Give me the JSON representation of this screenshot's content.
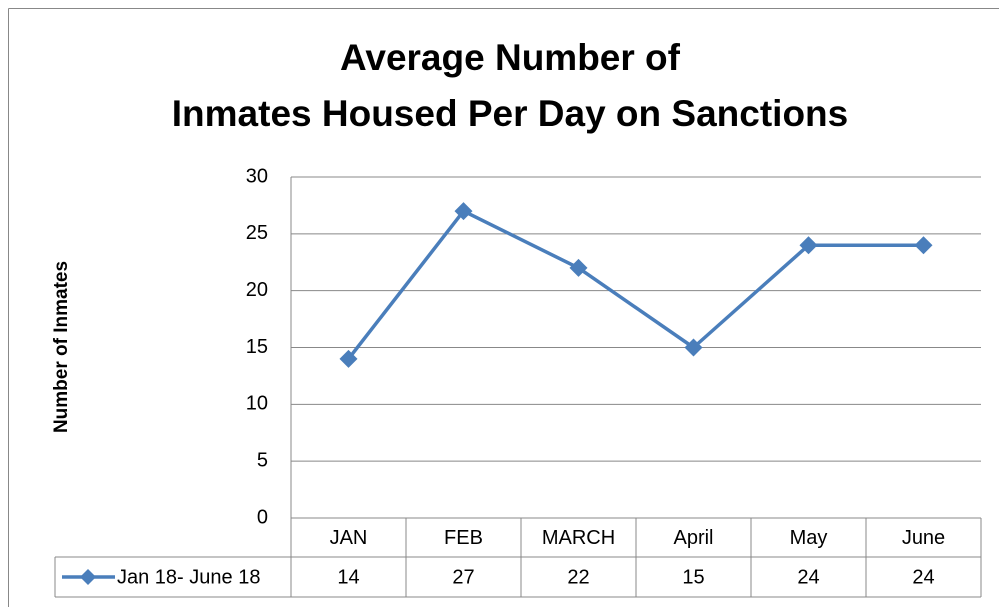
{
  "chart_data": {
    "type": "line",
    "title": [
      "Average Number of",
      "Inmates Housed Per Day on Sanctions"
    ],
    "y_label": "Number of Inmates",
    "categories": [
      "JAN",
      "FEB",
      "MARCH",
      "April",
      "May",
      "June"
    ],
    "series": [
      {
        "name": "Jan 18- June 18",
        "color": "#4a7ebb",
        "values": [
          14,
          27,
          22,
          15,
          24,
          24
        ]
      }
    ],
    "ylim": [
      0,
      30
    ],
    "yticks": [
      0,
      5,
      10,
      15,
      20,
      25,
      30
    ],
    "grid": true,
    "data_table": true
  }
}
